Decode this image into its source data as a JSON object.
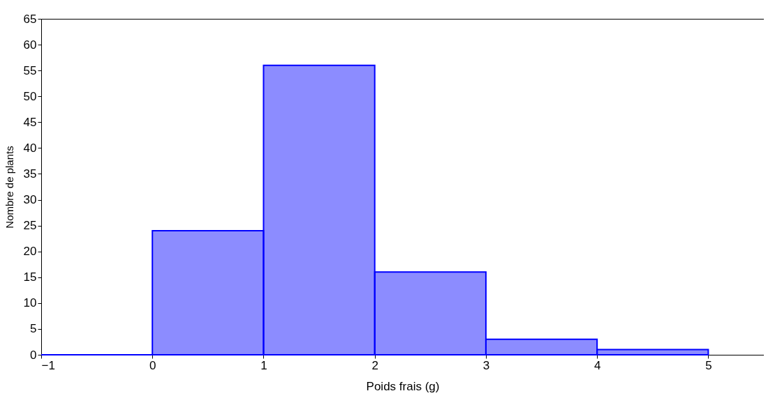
{
  "chart_data": {
    "type": "histogram",
    "xlabel": "Poids frais (g)",
    "ylabel": "Nombre de plants",
    "bins": [
      -1,
      0,
      1,
      2,
      3,
      4,
      5
    ],
    "values": [
      0,
      24,
      56,
      16,
      3,
      1
    ],
    "color": "#0000ff",
    "xlim": [
      -1,
      5.5
    ],
    "xticks": [
      -1,
      0,
      1,
      2,
      3,
      4,
      5
    ],
    "ylim": [
      0,
      65
    ],
    "yticks": [
      0,
      5,
      10,
      15,
      20,
      25,
      30,
      35,
      40,
      45,
      50,
      55,
      60,
      65
    ],
    "grid": false
  }
}
